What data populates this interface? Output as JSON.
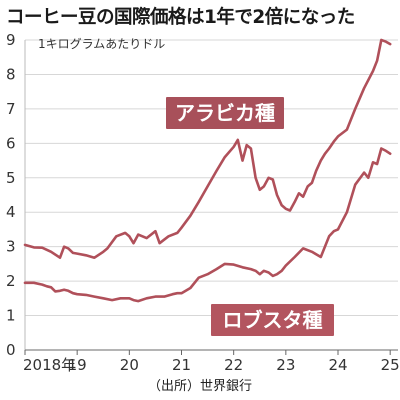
{
  "title": "コーヒー豆の国際価格は1年で2倍になった",
  "source": "（出所）世界銀行",
  "chart_data": {
    "type": "line",
    "ylabel": "1キログラムあたりドル",
    "ylim": [
      0,
      9
    ],
    "yticks": [
      0,
      1,
      2,
      3,
      4,
      5,
      6,
      7,
      8,
      9
    ],
    "xlim": [
      2018.0,
      2025.15
    ],
    "xticks": [
      {
        "value": 2018,
        "label": "2018年"
      },
      {
        "value": 2019,
        "label": "19"
      },
      {
        "value": 2020,
        "label": "20"
      },
      {
        "value": 2021,
        "label": "21"
      },
      {
        "value": 2022,
        "label": "22"
      },
      {
        "value": 2023,
        "label": "23"
      },
      {
        "value": 2024,
        "label": "24"
      },
      {
        "value": 2025,
        "label": "25"
      }
    ],
    "grid": true,
    "series": [
      {
        "name": "アラビカ種",
        "color": "#b0505a",
        "label_bg": "#a8505a",
        "points": [
          [
            2018.0,
            3.05
          ],
          [
            2018.17,
            2.98
          ],
          [
            2018.33,
            2.97
          ],
          [
            2018.5,
            2.85
          ],
          [
            2018.67,
            2.68
          ],
          [
            2018.75,
            3.0
          ],
          [
            2018.83,
            2.95
          ],
          [
            2018.92,
            2.82
          ],
          [
            2019.0,
            2.8
          ],
          [
            2019.17,
            2.75
          ],
          [
            2019.33,
            2.68
          ],
          [
            2019.5,
            2.85
          ],
          [
            2019.58,
            2.95
          ],
          [
            2019.75,
            3.3
          ],
          [
            2019.92,
            3.4
          ],
          [
            2020.0,
            3.3
          ],
          [
            2020.08,
            3.1
          ],
          [
            2020.17,
            3.35
          ],
          [
            2020.33,
            3.25
          ],
          [
            2020.5,
            3.45
          ],
          [
            2020.58,
            3.1
          ],
          [
            2020.75,
            3.3
          ],
          [
            2020.92,
            3.4
          ],
          [
            2021.0,
            3.55
          ],
          [
            2021.17,
            3.9
          ],
          [
            2021.33,
            4.3
          ],
          [
            2021.5,
            4.75
          ],
          [
            2021.67,
            5.2
          ],
          [
            2021.83,
            5.6
          ],
          [
            2022.0,
            5.9
          ],
          [
            2022.08,
            6.1
          ],
          [
            2022.17,
            5.5
          ],
          [
            2022.25,
            5.95
          ],
          [
            2022.33,
            5.85
          ],
          [
            2022.42,
            5.0
          ],
          [
            2022.5,
            4.65
          ],
          [
            2022.58,
            4.75
          ],
          [
            2022.67,
            5.0
          ],
          [
            2022.75,
            4.95
          ],
          [
            2022.83,
            4.5
          ],
          [
            2022.92,
            4.2
          ],
          [
            2023.0,
            4.1
          ],
          [
            2023.08,
            4.05
          ],
          [
            2023.17,
            4.3
          ],
          [
            2023.25,
            4.55
          ],
          [
            2023.33,
            4.45
          ],
          [
            2023.42,
            4.75
          ],
          [
            2023.5,
            4.85
          ],
          [
            2023.58,
            5.2
          ],
          [
            2023.67,
            5.5
          ],
          [
            2023.75,
            5.7
          ],
          [
            2023.83,
            5.85
          ],
          [
            2023.92,
            6.05
          ],
          [
            2024.0,
            6.2
          ],
          [
            2024.17,
            6.4
          ],
          [
            2024.33,
            7.0
          ],
          [
            2024.5,
            7.6
          ],
          [
            2024.67,
            8.1
          ],
          [
            2024.75,
            8.4
          ],
          [
            2024.83,
            9.0
          ],
          [
            2024.92,
            8.95
          ],
          [
            2025.0,
            8.88
          ]
        ]
      },
      {
        "name": "ロブスタ種",
        "color": "#b0505a",
        "label_bg": "#b3555f",
        "points": [
          [
            2018.0,
            1.95
          ],
          [
            2018.17,
            1.95
          ],
          [
            2018.33,
            1.9
          ],
          [
            2018.42,
            1.85
          ],
          [
            2018.5,
            1.82
          ],
          [
            2018.58,
            1.7
          ],
          [
            2018.67,
            1.72
          ],
          [
            2018.75,
            1.75
          ],
          [
            2018.83,
            1.72
          ],
          [
            2018.92,
            1.65
          ],
          [
            2019.0,
            1.62
          ],
          [
            2019.17,
            1.6
          ],
          [
            2019.33,
            1.55
          ],
          [
            2019.5,
            1.5
          ],
          [
            2019.67,
            1.45
          ],
          [
            2019.83,
            1.5
          ],
          [
            2020.0,
            1.5
          ],
          [
            2020.08,
            1.45
          ],
          [
            2020.17,
            1.42
          ],
          [
            2020.33,
            1.5
          ],
          [
            2020.5,
            1.55
          ],
          [
            2020.67,
            1.55
          ],
          [
            2020.83,
            1.62
          ],
          [
            2020.92,
            1.65
          ],
          [
            2021.0,
            1.65
          ],
          [
            2021.17,
            1.8
          ],
          [
            2021.33,
            2.1
          ],
          [
            2021.5,
            2.2
          ],
          [
            2021.67,
            2.35
          ],
          [
            2021.83,
            2.5
          ],
          [
            2022.0,
            2.48
          ],
          [
            2022.17,
            2.4
          ],
          [
            2022.33,
            2.35
          ],
          [
            2022.42,
            2.3
          ],
          [
            2022.5,
            2.2
          ],
          [
            2022.58,
            2.3
          ],
          [
            2022.67,
            2.25
          ],
          [
            2022.75,
            2.15
          ],
          [
            2022.83,
            2.2
          ],
          [
            2022.92,
            2.3
          ],
          [
            2023.0,
            2.45
          ],
          [
            2023.17,
            2.7
          ],
          [
            2023.33,
            2.95
          ],
          [
            2023.5,
            2.85
          ],
          [
            2023.67,
            2.7
          ],
          [
            2023.83,
            3.3
          ],
          [
            2023.92,
            3.45
          ],
          [
            2024.0,
            3.5
          ],
          [
            2024.17,
            4.0
          ],
          [
            2024.33,
            4.8
          ],
          [
            2024.5,
            5.15
          ],
          [
            2024.58,
            5.0
          ],
          [
            2024.67,
            5.45
          ],
          [
            2024.75,
            5.4
          ],
          [
            2024.83,
            5.85
          ],
          [
            2024.92,
            5.78
          ],
          [
            2025.0,
            5.7
          ]
        ]
      }
    ]
  }
}
